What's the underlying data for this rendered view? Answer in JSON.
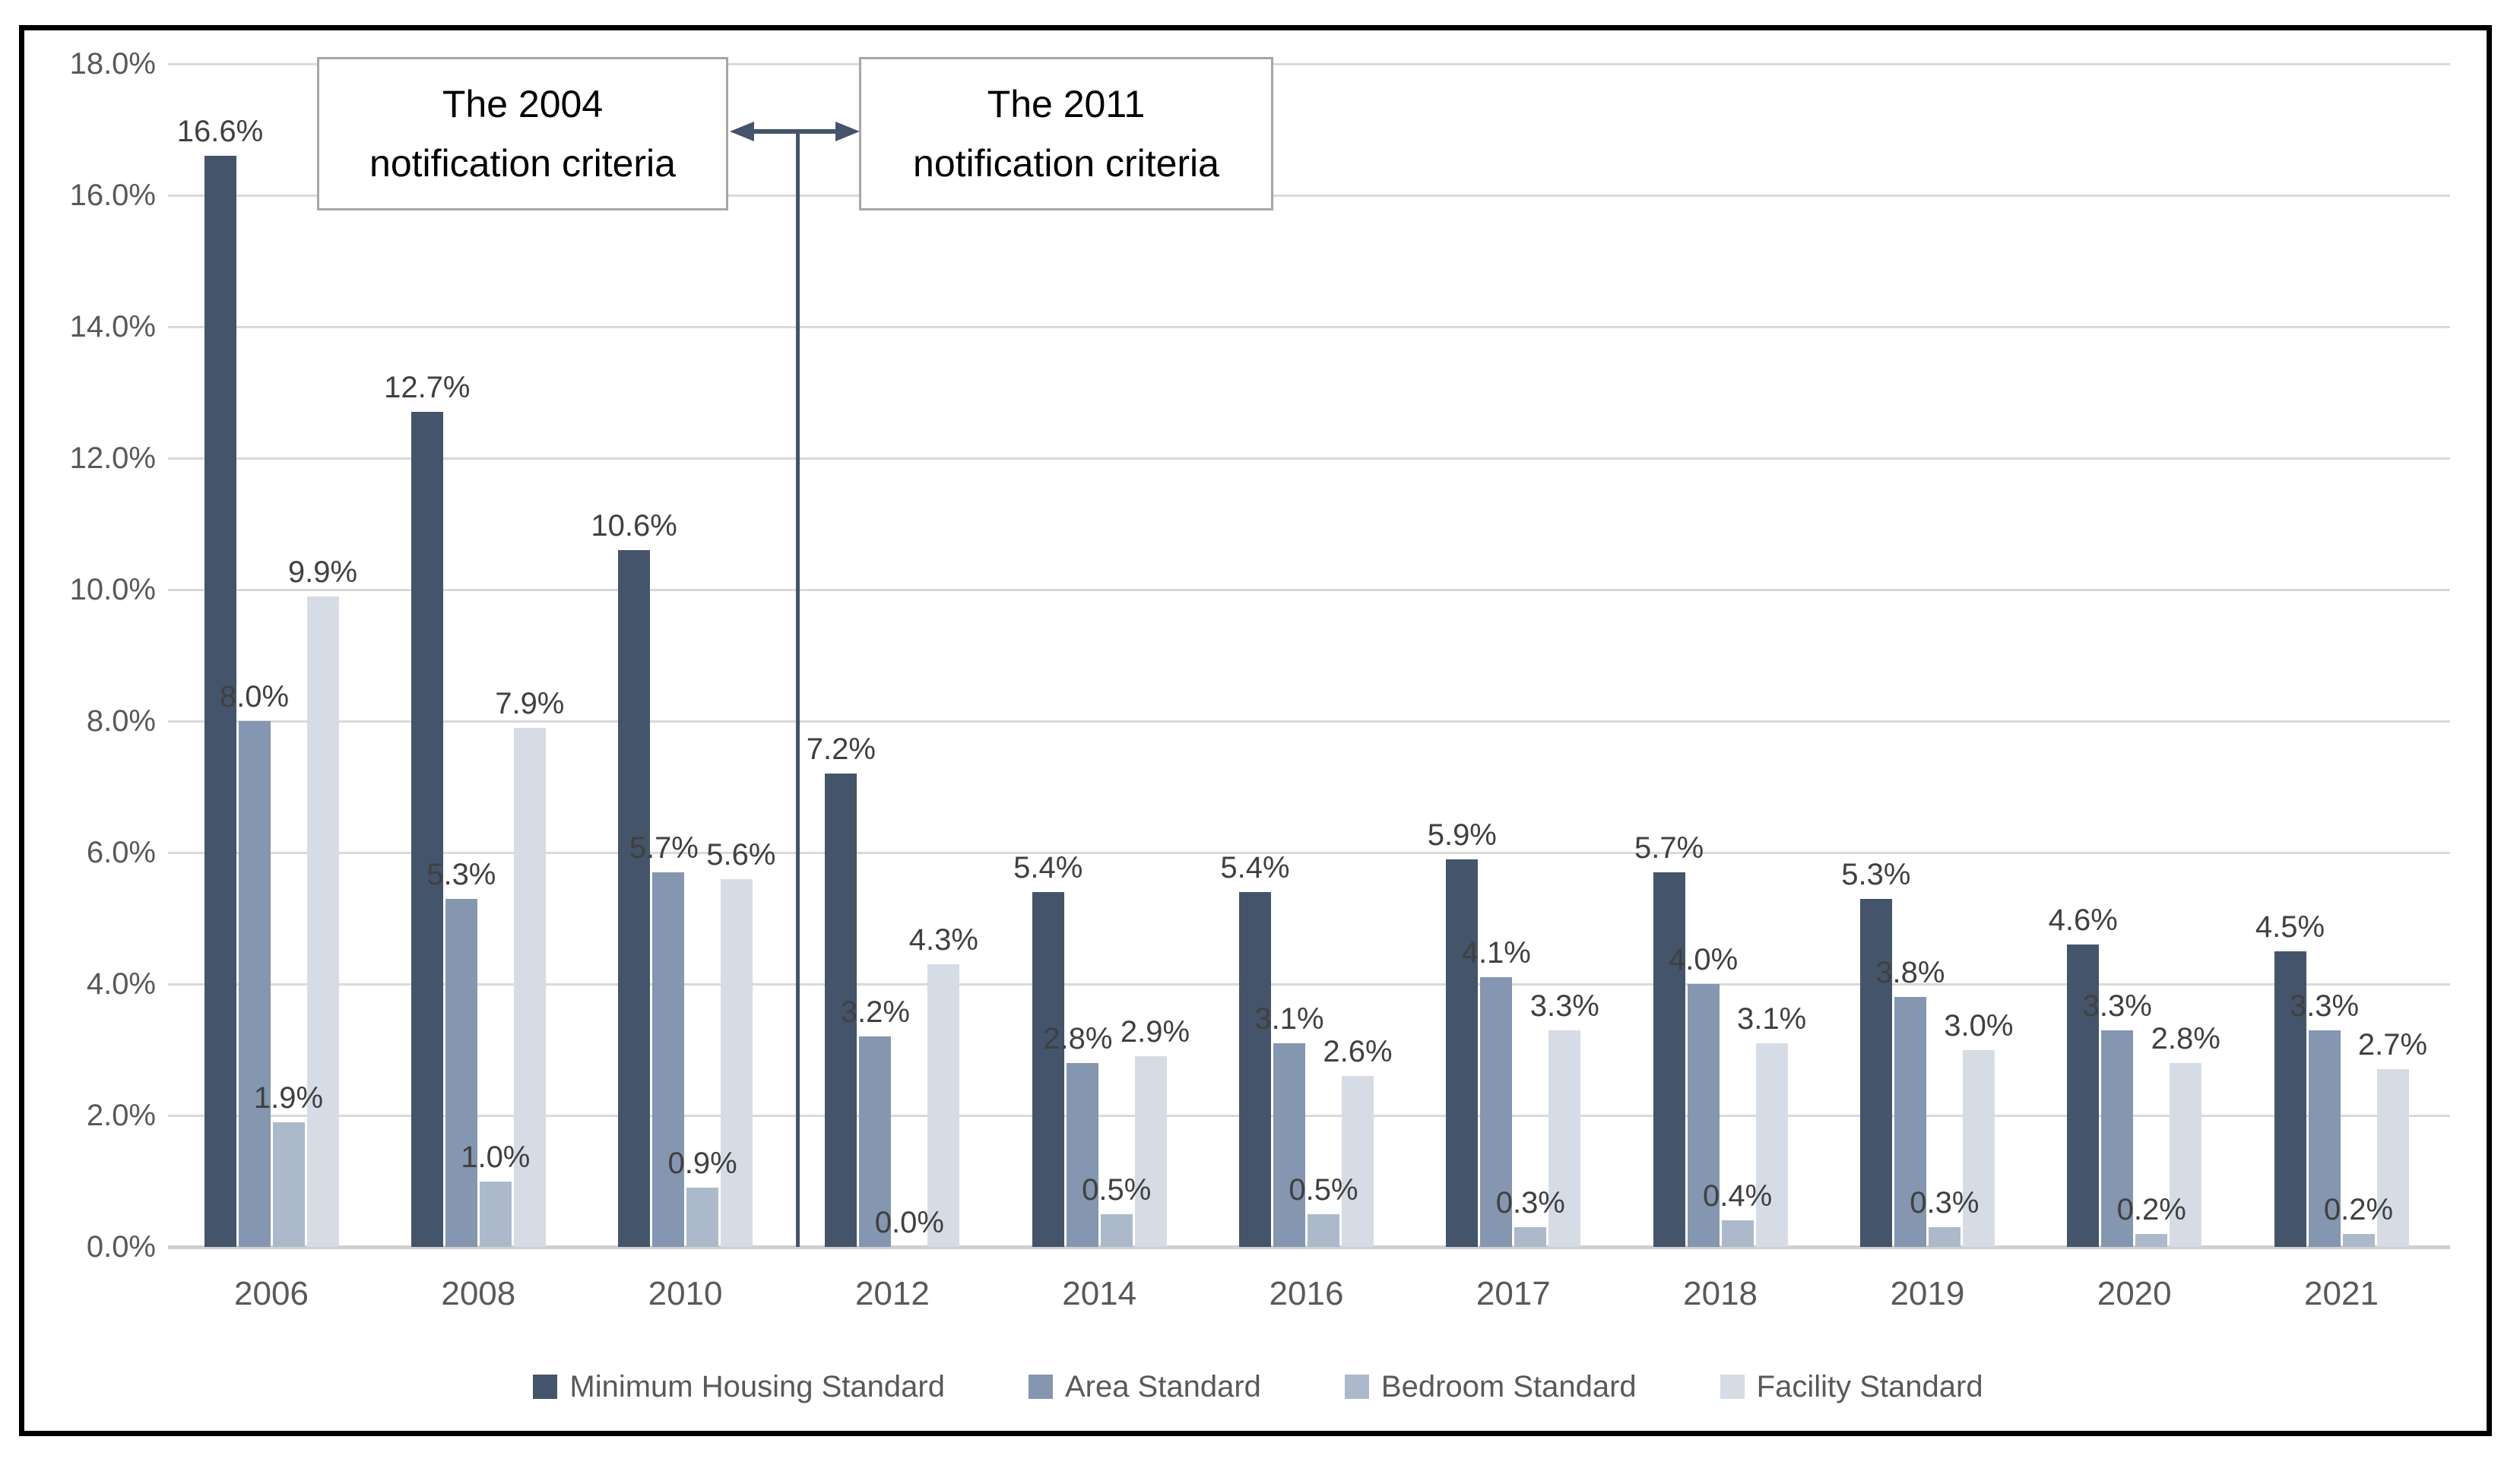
{
  "chart_data": {
    "type": "bar",
    "title": "",
    "categories": [
      "2006",
      "2008",
      "2010",
      "2012",
      "2014",
      "2016",
      "2017",
      "2018",
      "2019",
      "2020",
      "2021"
    ],
    "series": [
      {
        "name": "Minimum Housing Standard",
        "color": "#44546A",
        "values": [
          16.6,
          12.7,
          10.6,
          7.2,
          5.4,
          5.4,
          5.9,
          5.7,
          5.3,
          4.6,
          4.5
        ]
      },
      {
        "name": "Area Standard",
        "color": "#8496B0",
        "values": [
          8.0,
          5.3,
          5.7,
          3.2,
          2.8,
          3.1,
          4.1,
          4.0,
          3.8,
          3.3,
          3.3
        ]
      },
      {
        "name": "Bedroom Standard",
        "color": "#ACB9CA",
        "values": [
          1.9,
          1.0,
          0.9,
          0.0,
          0.5,
          0.5,
          0.3,
          0.4,
          0.3,
          0.2,
          0.2
        ]
      },
      {
        "name": "Facility Standard",
        "color": "#D6DCE5",
        "values": [
          9.9,
          7.9,
          5.6,
          4.3,
          2.9,
          2.6,
          3.3,
          3.1,
          3.0,
          2.8,
          2.7
        ]
      }
    ],
    "xlabel": "",
    "ylabel": "",
    "y_axis": {
      "min": 0,
      "max": 18,
      "step": 2,
      "tick_suffix": "%",
      "tick_decimals": 1
    },
    "y_tick_labels": [
      "18.0%",
      "16.0%",
      "14.0%",
      "12.0%",
      "10.0%",
      "8.0%",
      "6.0%",
      "4.0%",
      "2.0%",
      "0.0%"
    ],
    "grid": true,
    "data_labels": true,
    "data_label_suffix": "%",
    "legend_position": "bottom",
    "annotations": [
      {
        "type": "textbox",
        "text_lines": [
          "The 2004",
          "notification criteria"
        ]
      },
      {
        "type": "textbox",
        "text_lines": [
          "The 2011",
          "notification criteria"
        ]
      },
      {
        "type": "double-arrow-divider",
        "between_categories": [
          "2010",
          "2012"
        ]
      }
    ]
  },
  "colors": {
    "grid": "#D9D9D9",
    "axis_text": "#595959",
    "data_label_text": "#404040",
    "annotation_border": "#A6A6A6",
    "annotation_text": "#000000",
    "arrow_divider": "#44546A",
    "frame_border": "#000000",
    "background": "#FFFFFF"
  }
}
